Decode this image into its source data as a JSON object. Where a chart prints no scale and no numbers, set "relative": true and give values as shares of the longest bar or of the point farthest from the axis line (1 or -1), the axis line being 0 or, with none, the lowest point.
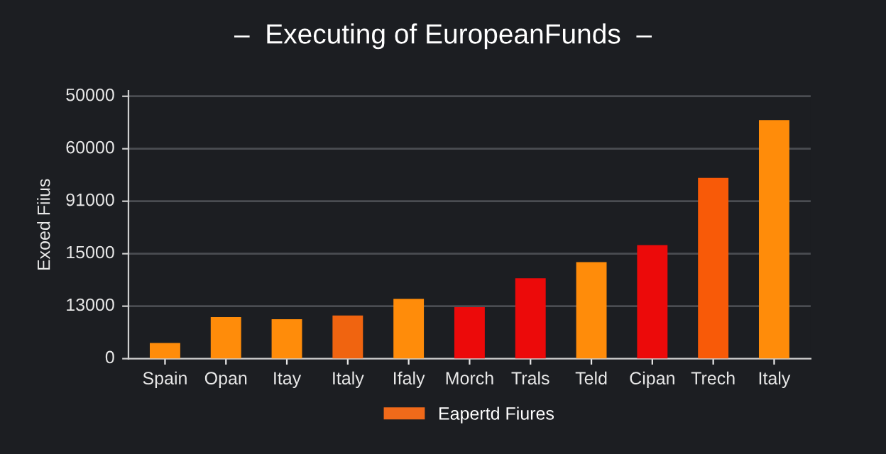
{
  "chart_data": {
    "type": "bar",
    "title": "–  Executing of EuropeanFunds  –",
    "ylabel": "Exoed Fiius",
    "categories": [
      "Spain",
      "Opan",
      "Itay",
      "Italy",
      "Ifaly",
      "Morch",
      "Trals",
      "Teld",
      "Cipan",
      "Trech",
      "Italy"
    ],
    "relative": true,
    "series": [
      {
        "name": "Eapertd Fiures",
        "color": "#f06a1a",
        "values": [
          0.066,
          0.174,
          0.165,
          0.181,
          0.251,
          0.216,
          0.337,
          0.405,
          0.476,
          0.758,
          1
        ],
        "colors": [
          "#ff8c0a",
          "#ff8c0a",
          "#ff8c0a",
          "#f06410",
          "#ff8c0a",
          "#ec0a0a",
          "#ec0a0a",
          "#ff8c0a",
          "#ec0a0a",
          "#f85a08",
          "#ff8c0a"
        ]
      }
    ],
    "annotations": [
      "0",
      "13000",
      "15000",
      "91000",
      "60000",
      "50000"
    ],
    "grid": "y",
    "legend": "bottom"
  }
}
